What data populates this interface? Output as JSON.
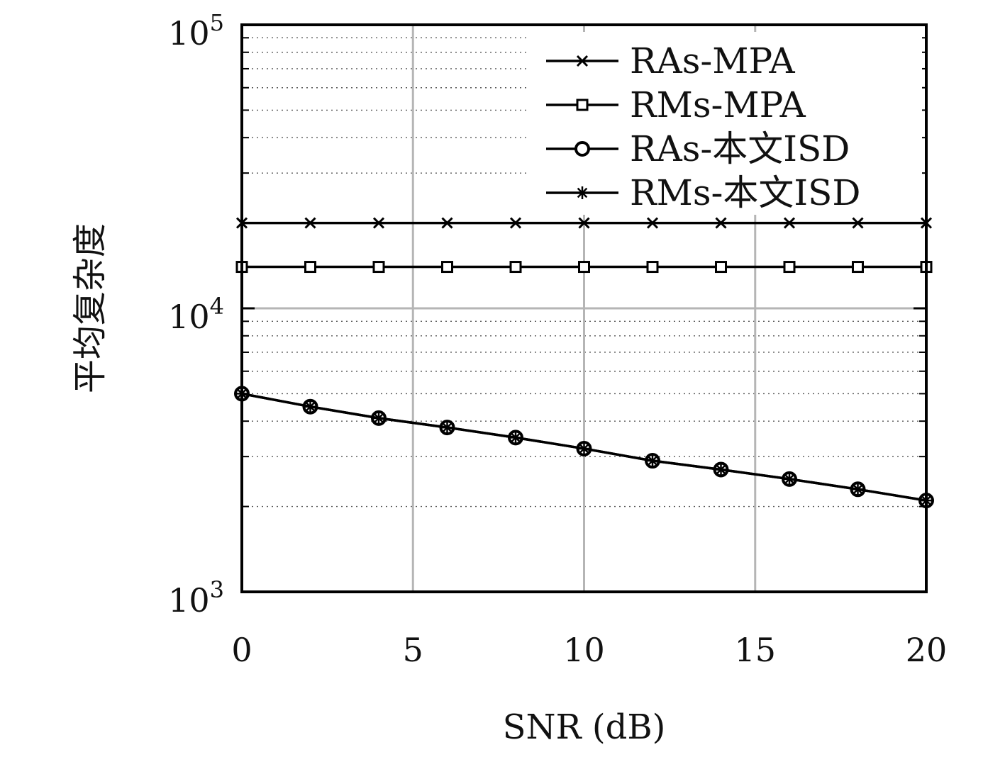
{
  "chart_data": {
    "type": "line",
    "title": "",
    "xlabel": "SNR (dB)",
    "ylabel": "平均复杂度",
    "x_scale": "linear",
    "y_scale": "log",
    "xlim": [
      0,
      20
    ],
    "ylim": [
      1000,
      100000
    ],
    "x_ticks": [
      0,
      5,
      10,
      15,
      20
    ],
    "x_tick_labels": [
      "0",
      "5",
      "10",
      "15",
      "20"
    ],
    "y_ticks": [
      1000,
      10000,
      100000
    ],
    "y_tick_labels": [
      {
        "base": "10",
        "exp": "3"
      },
      {
        "base": "10",
        "exp": "4"
      },
      {
        "base": "10",
        "exp": "5"
      }
    ],
    "grid": true,
    "legend_position": "top-right",
    "x": [
      0,
      2,
      4,
      6,
      8,
      10,
      12,
      14,
      16,
      18,
      20
    ],
    "series": [
      {
        "name": "RAs-MPA",
        "marker": "x",
        "values": [
          20000,
          20000,
          20000,
          20000,
          20000,
          20000,
          20000,
          20000,
          20000,
          20000,
          20000
        ]
      },
      {
        "name": "RMs-MPA",
        "marker": "square",
        "values": [
          14000,
          14000,
          14000,
          14000,
          14000,
          14000,
          14000,
          14000,
          14000,
          14000,
          14000
        ]
      },
      {
        "name": "RAs-本文ISD",
        "marker": "circle",
        "values": [
          5000,
          4500,
          4100,
          3800,
          3500,
          3200,
          2900,
          2700,
          2500,
          2300,
          2100
        ]
      },
      {
        "name": "RMs-本文ISD",
        "marker": "asterisk",
        "values": [
          5000,
          4500,
          4100,
          3800,
          3500,
          3200,
          2900,
          2700,
          2500,
          2300,
          2100
        ]
      }
    ]
  }
}
